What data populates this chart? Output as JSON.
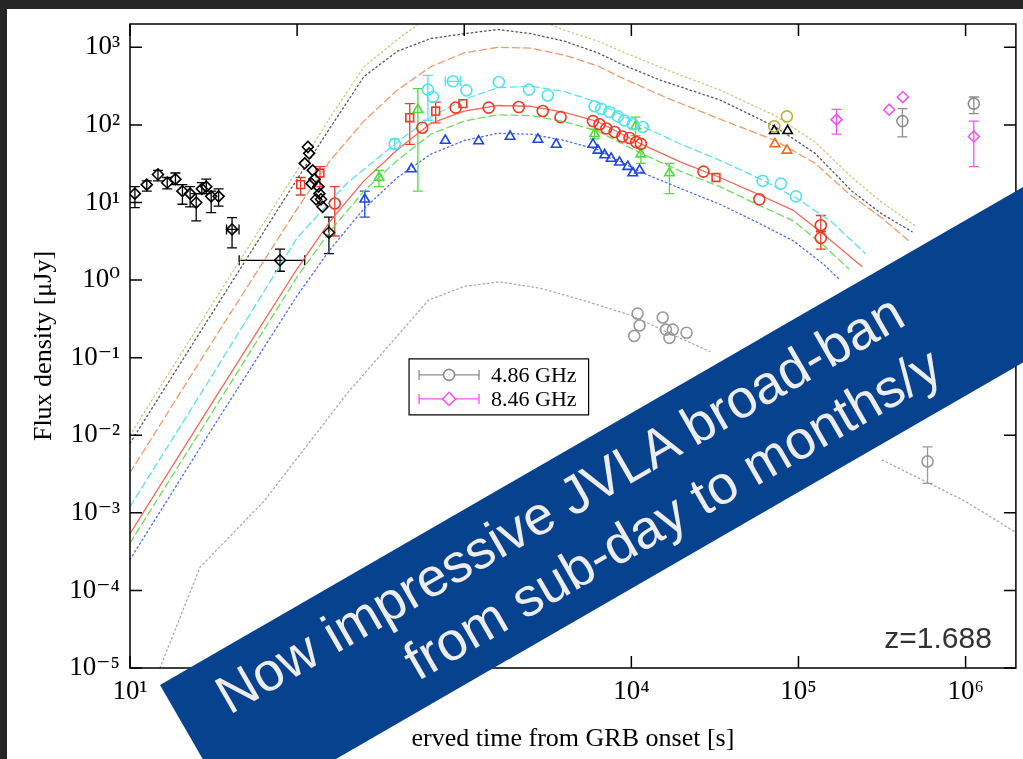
{
  "chart_data": {
    "type": "scatter",
    "xlabel": "erved time from GRB onset [s]",
    "ylabel": "Flux density [μJy]",
    "log": "xy",
    "legend": "bottom",
    "xlim": [
      10,
      2000000
    ],
    "ylim": [
      1e-05,
      2000
    ],
    "xticks": [
      {
        "value": 10,
        "label": "10¹"
      },
      {
        "value": 100,
        "label": null
      },
      {
        "value": 1000,
        "label": null
      },
      {
        "value": 10000,
        "label": "10⁴"
      },
      {
        "value": 100000,
        "label": "10⁵"
      },
      {
        "value": 1000000,
        "label": "10⁶"
      }
    ],
    "yticks": [
      {
        "value": 1e-05,
        "label": "10⁻⁵"
      },
      {
        "value": 0.0001,
        "label": "10⁻⁴"
      },
      {
        "value": 0.001,
        "label": "10⁻³"
      },
      {
        "value": 0.01,
        "label": "10⁻²"
      },
      {
        "value": 0.1,
        "label": "10⁻¹"
      },
      {
        "value": 1,
        "label": "10⁰"
      },
      {
        "value": 10,
        "label": "10¹"
      },
      {
        "value": 100,
        "label": "10²"
      },
      {
        "value": 1000,
        "label": "10³"
      }
    ],
    "annotations": [
      "z=1.688",
      "Now impressive JVLA broad-ban",
      "from sub-day to months/y"
    ],
    "series": [
      {
        "type": "scatter",
        "color": "#000000",
        "marker": "diamond",
        "x": [
          10.7,
          12.6,
          14.7,
          16.7,
          18.7,
          20.6,
          22.9,
          24.9,
          26.9,
          28.6,
          30.6,
          33.9,
          40.8,
          79,
          111,
          116,
          118,
          122,
          124,
          127,
          130,
          134,
          136,
          139,
          142,
          155
        ],
        "values": [
          13,
          17,
          23,
          18,
          20,
          14,
          13,
          10,
          15,
          16,
          12,
          12,
          4.5,
          1.8,
          32,
          52,
          43,
          17.5,
          26,
          20,
          11,
          16,
          13,
          11,
          8.8,
          4.1
        ],
        "errors": [
          [
            8.6,
            16
          ],
          [
            14,
            19
          ],
          [
            19,
            26
          ],
          [
            15,
            21
          ],
          [
            17,
            24
          ],
          [
            9.5,
            17
          ],
          [
            8.8,
            16
          ],
          [
            5.8,
            13
          ],
          [
            13,
            18
          ],
          [
            13,
            20
          ],
          [
            7.4,
            14
          ],
          [
            9,
            15
          ],
          [
            2.6,
            6.4
          ],
          [
            1.3,
            2.5
          ],
          null,
          null,
          null,
          null,
          null,
          null,
          null,
          null,
          null,
          null,
          null,
          [
            2.2,
            6.5
          ]
        ],
        "xerrors": [
          null,
          null,
          null,
          null,
          null,
          null,
          null,
          null,
          null,
          null,
          null,
          null,
          [
            37.8,
            44.9
          ],
          [
            45,
            111
          ],
          null,
          null,
          null,
          null,
          null,
          null,
          null,
          null,
          null,
          null,
          null,
          null
        ]
      },
      {
        "type": "scatter",
        "color": "#ee3a24",
        "marker": "square",
        "x": [
          105,
          137,
          472,
          675,
          982,
          32100
        ],
        "values": [
          17,
          24,
          124,
          151,
          188,
          21
        ],
        "errors": [
          [
            12.5,
            21
          ],
          [
            16,
            29
          ],
          [
            56,
            188
          ],
          [
            106,
            197
          ],
          null,
          null
        ]
      },
      {
        "type": "scatter",
        "color": "#ee3a24",
        "marker": "circle",
        "x": [
          168,
          561,
          889,
          1400,
          2120,
          2950,
          3770,
          5890,
          6450,
          7080,
          7950,
          8820,
          9750,
          10700,
          11400,
          27000,
          58300,
          136000,
          136000
        ],
        "values": [
          9.7,
          92,
          167,
          167,
          170,
          151,
          126,
          112,
          102,
          90,
          81,
          71,
          68,
          60,
          57,
          25,
          11,
          5.1,
          3.5
        ],
        "errors": [
          [
            3.7,
            16
          ],
          null,
          null,
          null,
          null,
          null,
          null,
          null,
          null,
          null,
          null,
          null,
          null,
          null,
          null,
          null,
          null,
          [
            4.2,
            6.8
          ],
          [
            2.5,
            4.3
          ]
        ]
      },
      {
        "type": "scatter",
        "color": "#4fe3f0",
        "marker": "circle",
        "x": [
          384,
          606,
          650,
          856,
          1030,
          1610,
          2440,
          3160,
          6030,
          6600,
          7400,
          8300,
          9090,
          10200,
          11700,
          61000,
          78500,
          96600
        ],
        "values": [
          57,
          285,
          229,
          365,
          279,
          357,
          285,
          240,
          174,
          162,
          147,
          129,
          114,
          102,
          94,
          19,
          17.5,
          12
        ],
        "errors": [
          [
            49,
            66
          ],
          [
            115,
            436
          ],
          null,
          null,
          null,
          null,
          null,
          null,
          null,
          null,
          null,
          null,
          null,
          null,
          null,
          null,
          null,
          null
        ],
        "xerrors": [
          null,
          null,
          null,
          [
            770,
            950
          ],
          null,
          null,
          null,
          null,
          null,
          null,
          null,
          null,
          null,
          null,
          null,
          null,
          null,
          null
        ]
      },
      {
        "type": "scatter",
        "color": "#1e44e6",
        "marker": "triangle",
        "x": [
          254,
          483,
          770,
          1220,
          1880,
          2760,
          3550,
          5890,
          6310,
          6920,
          7570,
          8490,
          9520,
          10200,
          11200
        ],
        "values": [
          11,
          27,
          63,
          62,
          71,
          65,
          56,
          56,
          47,
          41,
          37,
          33,
          29,
          24,
          26
        ],
        "errors": [
          [
            6.5,
            14
          ],
          null,
          null,
          null,
          null,
          null,
          null,
          null,
          null,
          null,
          null,
          null,
          null,
          null,
          null
        ]
      },
      {
        "type": "scatter",
        "color": "#4fdc3c",
        "marker": "triangle",
        "x": [
          309,
          528,
          6030,
          10600,
          11400,
          16900
        ],
        "values": [
          21,
          157,
          77,
          96,
          42,
          24
        ],
        "errors": [
          [
            16,
            26
          ],
          [
            14,
            294
          ],
          [
            66,
            88
          ],
          [
            73,
            126
          ],
          [
            32,
            50
          ],
          [
            13,
            32
          ]
        ]
      },
      {
        "type": "scatter",
        "color": "#999999",
        "marker": "circle",
        "x": [
          10400,
          10900,
          11200,
          15400,
          16100,
          16900,
          17700,
          21400,
          592000
        ],
        "values": [
          0.19,
          0.37,
          0.26,
          0.33,
          0.23,
          0.18,
          0.23,
          0.21,
          0.0046
        ],
        "errors": [
          null,
          null,
          null,
          null,
          null,
          null,
          null,
          null,
          [
            0.0024,
            0.0071
          ]
        ]
      },
      {
        "type": "scatter",
        "name": "4.86 GHz",
        "color": "#8c8c8c",
        "marker": "circle",
        "x": [
          419000,
          1120000
        ],
        "values": [
          112,
          188
        ],
        "errors": [
          [
            70,
            162
          ],
          [
            140,
            229
          ]
        ]
      },
      {
        "type": "scatter",
        "name": "8.46 GHz",
        "color": "#f055f0",
        "marker": "diamond",
        "x": [
          169000,
          349000,
          421000,
          1120000
        ],
        "values": [
          117,
          157,
          229,
          71
        ],
        "errors": [
          [
            76,
            159
          ],
          null,
          null,
          [
            29,
            112
          ]
        ]
      },
      {
        "type": "scatter",
        "color": "#b8b035",
        "marker": "circle",
        "x": [
          71600,
          85300
        ],
        "values": [
          96,
          129
        ]
      },
      {
        "type": "scatter",
        "color": "#000000",
        "marker": "triangle",
        "x": [
          71600,
          86100
        ],
        "values": [
          84,
          84
        ]
      },
      {
        "type": "scatter",
        "color": "#f26b1d",
        "marker": "triangle",
        "x": [
          72300,
          85300
        ],
        "values": [
          57,
          47
        ]
      },
      {
        "type": "line",
        "color": "#cdc77a",
        "line_style": "dotted",
        "x": [
          10,
          31.6,
          100,
          158,
          251,
          398,
          525,
          1000,
          1585,
          3311,
          3981,
          6310,
          8511,
          15850,
          33880,
          72440,
          125900,
          208900,
          316200,
          501200
        ],
        "values": [
          0.01,
          0.52,
          26,
          126,
          560,
          1260,
          1950,
          null,
          null,
          1950,
          1660,
          1200,
          910,
          525,
          282,
          132,
          60,
          21,
          10,
          5
        ]
      },
      {
        "type": "line",
        "color": "#555555",
        "line_style": "dotted",
        "x": [
          10,
          31.6,
          100,
          158,
          251,
          398,
          631,
          1000,
          1585,
          2512,
          3981,
          6310,
          8511,
          14790,
          33880,
          72440,
          125900,
          208900,
          316200,
          478600
        ],
        "values": [
          0.0079,
          0.4,
          20,
          93,
          420,
          890,
          1300,
          1500,
          1700,
          1500,
          1200,
          850,
          620,
          380,
          210,
          95,
          43,
          14,
          7.1,
          4.2
        ]
      },
      {
        "type": "line",
        "color": "#f39a6a",
        "line_style": "dashed",
        "x": [
          10,
          31.6,
          100,
          158,
          251,
          398,
          631,
          1000,
          1585,
          2512,
          3981,
          6310,
          8511,
          15850,
          31620,
          72440,
          125900,
          199500,
          316200,
          457100
        ],
        "values": [
          0.0033,
          0.17,
          8.3,
          35,
          112,
          282,
          562,
          851,
          1000,
          977,
          794,
          575,
          417,
          229,
          126,
          63,
          32,
          13,
          6.3,
          3.2
        ]
      },
      {
        "type": "line",
        "color": "#5ee0ec",
        "line_style": "dashed",
        "x": [
          10,
          31.6,
          100,
          200,
          398,
          631,
          1000,
          1585,
          2512,
          3981,
          6310,
          11750,
          19950,
          33880,
          60950,
          100000,
          158500,
          251200
        ],
        "values": [
          0.0012,
          0.063,
          3.5,
          18,
          60,
          126,
          214,
          302,
          316,
          269,
          195,
          95,
          56,
          35,
          19.5,
          11,
          5.6,
          2.2
        ]
      },
      {
        "type": "line",
        "color": "#f26a5a",
        "line_style": "solid",
        "x": [
          10,
          31.6,
          100,
          158,
          251,
          398,
          631,
          1000,
          1585,
          2512,
          3981,
          6310,
          11220,
          19950,
          33880,
          56230,
          93330,
          131800,
          239900
        ],
        "values": [
          0.00054,
          0.028,
          1.4,
          5.8,
          19,
          48,
          105,
          151,
          178,
          174,
          145,
          110,
          58,
          33,
          21,
          13,
          7.9,
          4.4,
          1.5
        ]
      },
      {
        "type": "line",
        "color": "#6edc5c",
        "line_style": "dashed",
        "x": [
          10,
          31.6,
          100,
          158,
          251,
          398,
          631,
          1000,
          1585,
          2512,
          3981,
          6310,
          11220,
          19950,
          33880,
          56230,
          93330,
          141300,
          199500
        ],
        "values": [
          0.00041,
          0.021,
          1.1,
          4.3,
          14,
          35,
          76,
          112,
          135,
          132,
          110,
          83,
          44,
          25,
          16,
          9.5,
          5.8,
          2.8,
          1.4
        ]
      },
      {
        "type": "line",
        "color": "#4a6cf0",
        "line_style": "dotted",
        "x": [
          10,
          31.6,
          100,
          158,
          251,
          398,
          631,
          1000,
          1585,
          2512,
          3981,
          6310,
          11220,
          19950,
          33880,
          56230,
          93330,
          141300,
          177800
        ],
        "values": [
          0.00025,
          0.013,
          0.63,
          2.5,
          8.3,
          21,
          42,
          63,
          78,
          76,
          63,
          48,
          25,
          15,
          9.5,
          5.6,
          3.2,
          1.6,
          1
        ]
      },
      {
        "type": "line",
        "color": "#aaaaaa",
        "line_style": "dotted",
        "x": [
          15.1,
          26.3,
          63.1,
          200,
          610,
          1000,
          1622,
          2818,
          5129,
          10000,
          15850,
          29510,
          100000,
          316200,
          631000,
          1000000,
          2000000
        ],
        "values": [
          1e-05,
          0.0002,
          0.0014,
          0.035,
          0.55,
          0.83,
          0.95,
          0.79,
          0.55,
          0.35,
          0.22,
          0.12,
          null,
          0.0048,
          0.0023,
          0.0014,
          0.00056
        ]
      }
    ]
  }
}
